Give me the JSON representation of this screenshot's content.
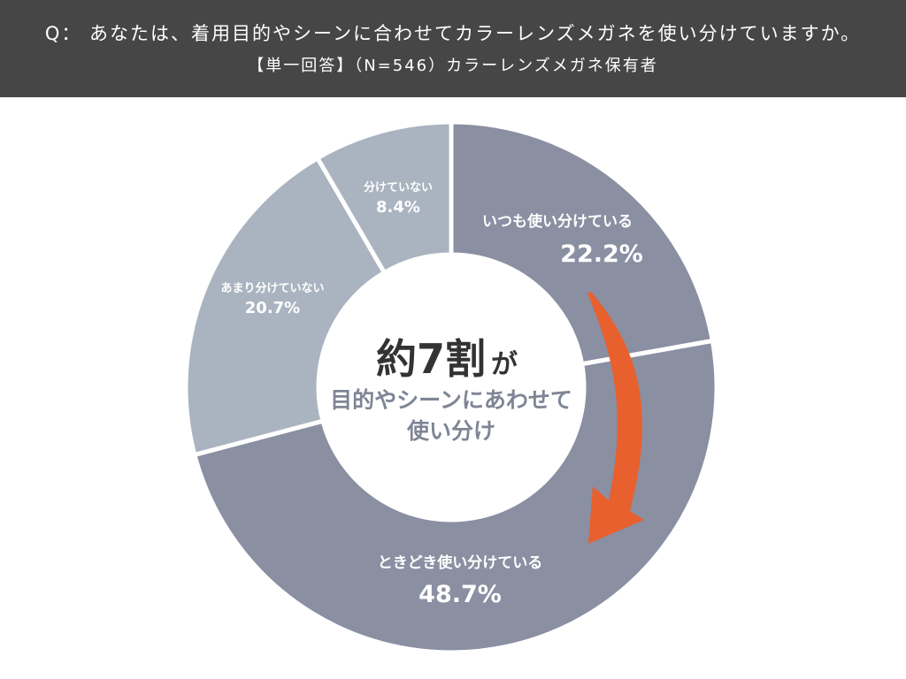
{
  "header": {
    "question": "Q： あなたは、着用目的やシーンに合わせてカラーレンズメガネを使い分けていますか。",
    "subtitle": "【単一回答】（N=546）カラーレンズメガネ保有者"
  },
  "center_text": {
    "big": "約7割",
    "big_suffix": "が",
    "line1": "目的やシーンにあわせて",
    "line2": "使い分け"
  },
  "colors": {
    "header_bg": "#464646",
    "dark_slice": "#8a8fa2",
    "light_slice": "#aab4c0",
    "arrow": "#e8602e"
  },
  "chart_data": {
    "type": "pie",
    "donut": true,
    "unit": "%",
    "slices": [
      {
        "label": "いつも使い分けている",
        "value": 22.2,
        "display": "22.2%",
        "color": "#8a8fa2"
      },
      {
        "label": "ときどき使い分けている",
        "value": 48.7,
        "display": "48.7%",
        "color": "#8a8fa2"
      },
      {
        "label": "あまり分けていない",
        "value": 20.7,
        "display": "20.7%",
        "color": "#aab4c0"
      },
      {
        "label": "分けていない",
        "value": 8.4,
        "display": "8.4%",
        "color": "#aab4c0"
      }
    ]
  }
}
